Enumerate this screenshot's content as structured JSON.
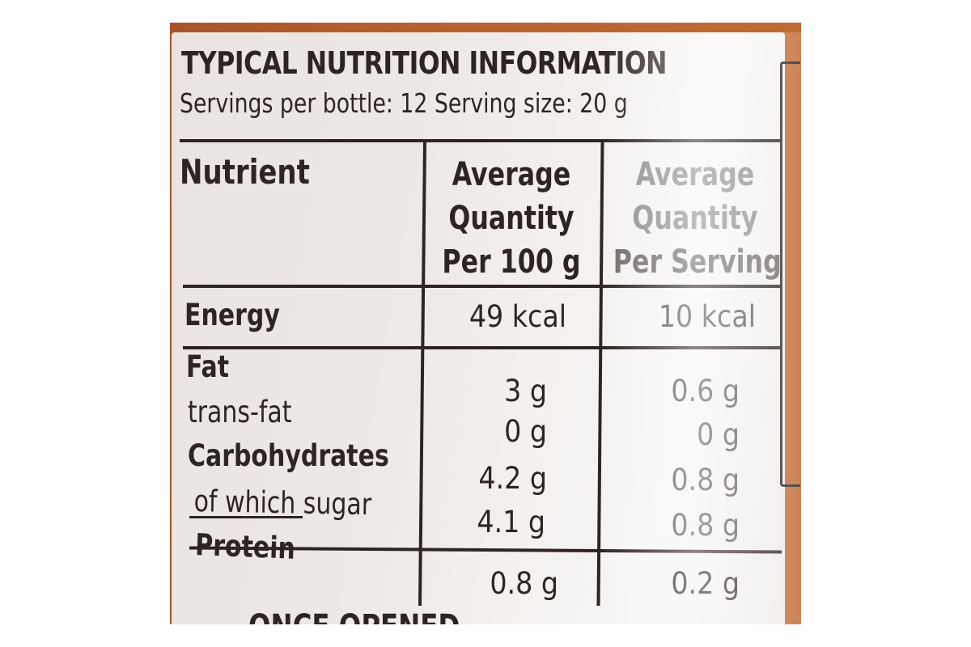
{
  "title": "TYPICAL NUTRITION INFORMATION",
  "subtitle": "Servings per bottle: 12 Serving size: 20 g",
  "columns": {
    "nutrient": "Nutrient",
    "per100": [
      "Average",
      "Quantity",
      "Per 100 g"
    ],
    "perServing": [
      "Average",
      "Quantity",
      "Per Serving"
    ]
  },
  "rows": [
    {
      "name": "Energy",
      "per100": "49 kcal",
      "perServing": "10 kcal"
    },
    {
      "name": "Fat",
      "per100": "3 g",
      "perServing": "0.6 g"
    },
    {
      "name": "trans-fat",
      "per100": "0 g",
      "perServing": "0 g"
    },
    {
      "name": "Carbohydrates",
      "per100": "4.2 g",
      "perServing": "0.8 g"
    },
    {
      "name": "of which sugar",
      "per100": "4.1 g",
      "perServing": "0.8 g"
    },
    {
      "name": "Protein",
      "per100": "0.8 g",
      "perServing": "0.2 g"
    }
  ],
  "footer_partial": "ONCE OPENED",
  "colors": {
    "bottle": "#b8602e",
    "label": "#ece8e4",
    "ink": "#2e2522"
  }
}
